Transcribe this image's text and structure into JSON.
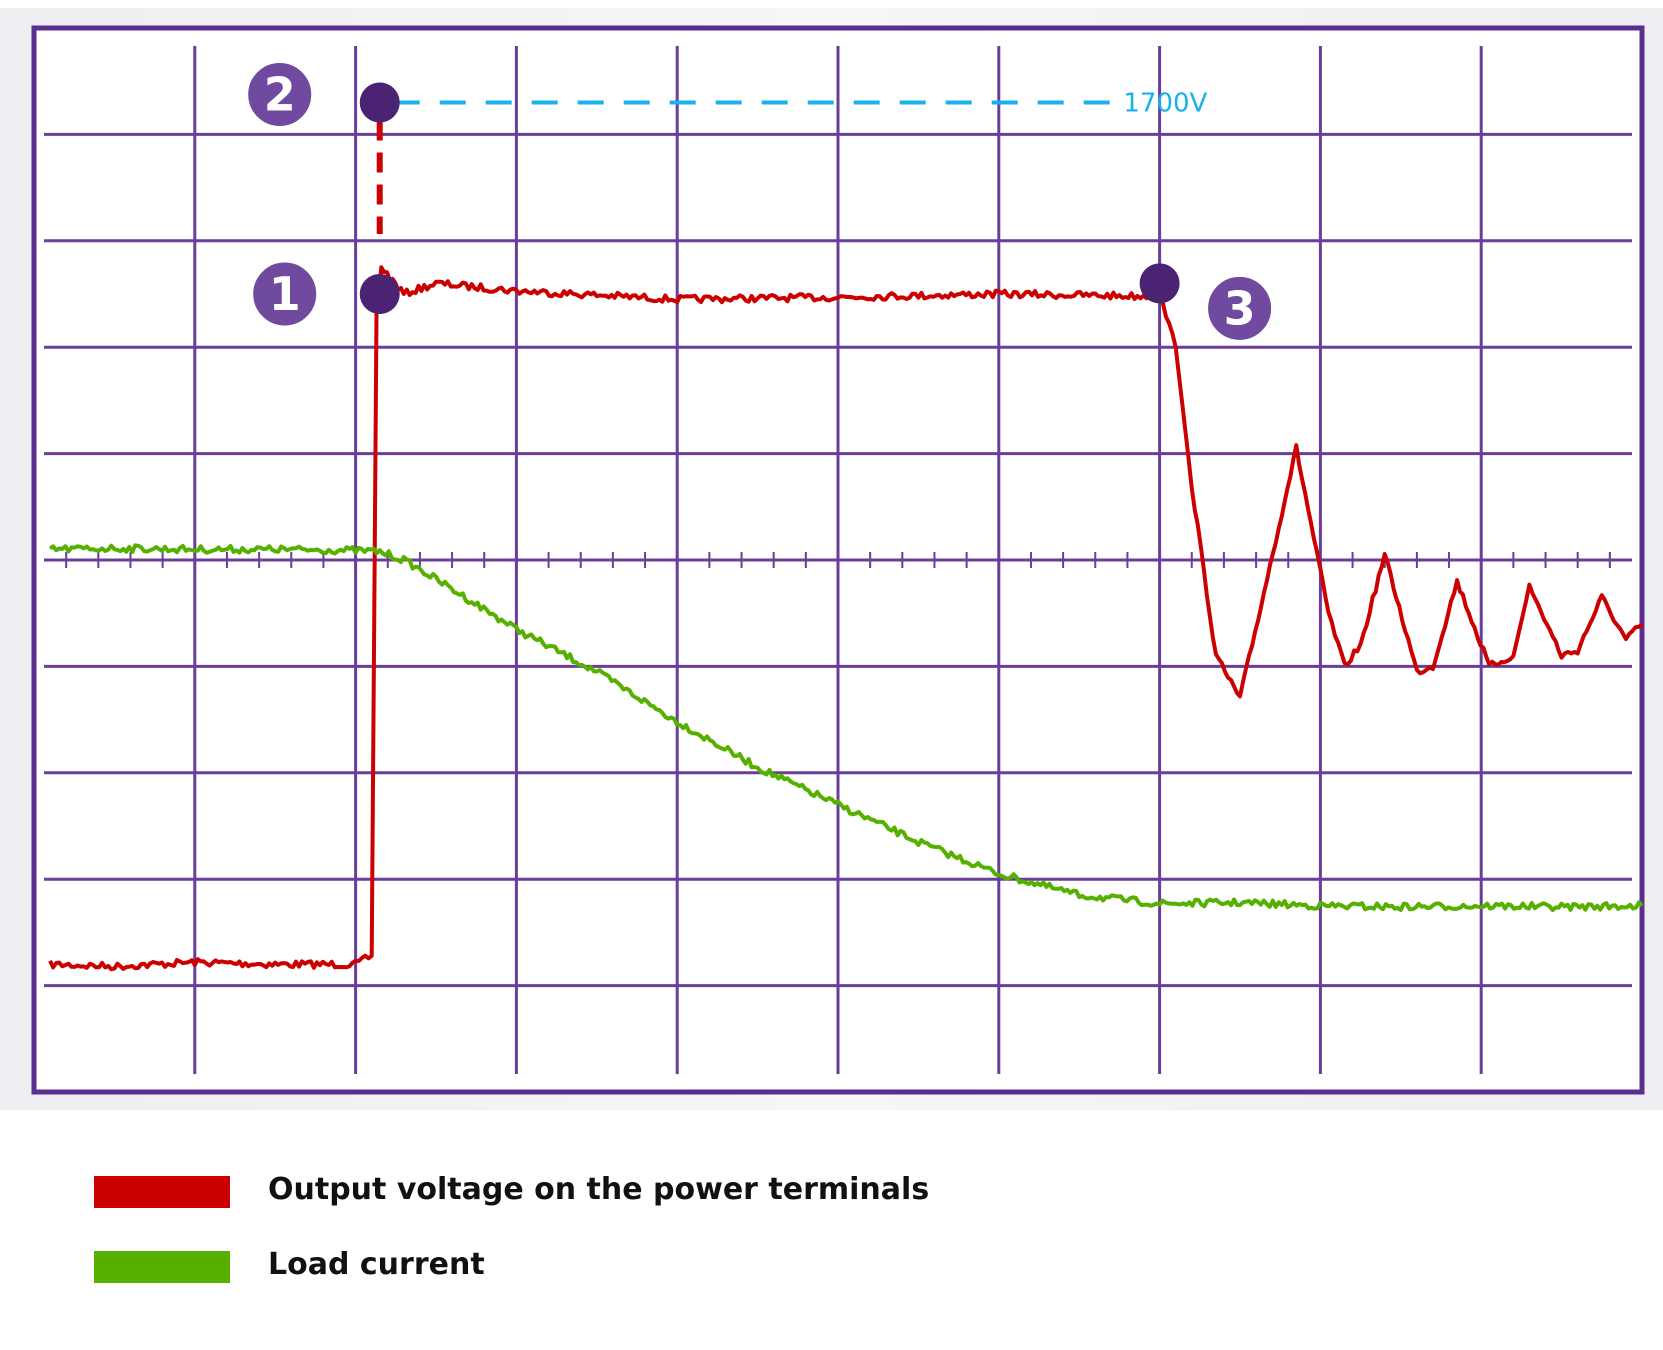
{
  "chart_data": {
    "type": "line",
    "title": "",
    "xlabel": "",
    "ylabel": "",
    "grid": true,
    "xlim": [
      0,
      10
    ],
    "ylim": [
      0,
      10
    ],
    "x_divisions": 10,
    "y_divisions": 10,
    "annotations": [
      {
        "marker": "1",
        "x": 2.15,
        "y": 7.5
      },
      {
        "marker": "2",
        "x": 2.15,
        "y": 9.3
      },
      {
        "marker": "3",
        "x": 7.0,
        "y": 7.6
      }
    ],
    "reference_line": {
      "label": "1700V",
      "y": 9.3,
      "x_start": 2.15,
      "x_end": 6.75
    },
    "series": [
      {
        "name": "Output voltage on the power terminals",
        "color": "#cc0000",
        "points": [
          [
            0.1,
            1.2
          ],
          [
            0.5,
            1.18
          ],
          [
            1.0,
            1.22
          ],
          [
            1.5,
            1.2
          ],
          [
            2.0,
            1.2
          ],
          [
            2.1,
            1.28
          ],
          [
            2.13,
            7.3
          ],
          [
            2.16,
            7.75
          ],
          [
            2.3,
            7.5
          ],
          [
            2.5,
            7.6
          ],
          [
            3.0,
            7.53
          ],
          [
            4.0,
            7.45
          ],
          [
            5.0,
            7.47
          ],
          [
            6.0,
            7.5
          ],
          [
            6.9,
            7.48
          ],
          [
            7.0,
            7.5
          ],
          [
            7.1,
            7.0
          ],
          [
            7.2,
            5.7
          ],
          [
            7.35,
            4.1
          ],
          [
            7.5,
            3.7
          ],
          [
            7.65,
            4.7
          ],
          [
            7.85,
            6.05
          ],
          [
            8.05,
            4.5
          ],
          [
            8.15,
            4.0
          ],
          [
            8.25,
            4.2
          ],
          [
            8.4,
            5.05
          ],
          [
            8.6,
            3.95
          ],
          [
            8.7,
            4.0
          ],
          [
            8.85,
            4.8
          ],
          [
            9.05,
            4.0
          ],
          [
            9.2,
            4.1
          ],
          [
            9.3,
            4.75
          ],
          [
            9.5,
            4.1
          ],
          [
            9.6,
            4.15
          ],
          [
            9.75,
            4.65
          ],
          [
            9.9,
            4.25
          ],
          [
            10.0,
            4.4
          ]
        ]
      },
      {
        "name": "Load current",
        "color": "#55b000",
        "points": [
          [
            0.1,
            5.1
          ],
          [
            0.5,
            5.11
          ],
          [
            1.0,
            5.1
          ],
          [
            1.5,
            5.1
          ],
          [
            2.0,
            5.09
          ],
          [
            2.15,
            5.08
          ],
          [
            2.3,
            5.0
          ],
          [
            2.5,
            4.82
          ],
          [
            3.0,
            4.35
          ],
          [
            3.5,
            3.95
          ],
          [
            4.0,
            3.48
          ],
          [
            4.5,
            3.05
          ],
          [
            5.0,
            2.7
          ],
          [
            5.5,
            2.35
          ],
          [
            6.0,
            2.05
          ],
          [
            6.5,
            1.85
          ],
          [
            7.0,
            1.77
          ],
          [
            7.5,
            1.78
          ],
          [
            8.0,
            1.75
          ],
          [
            8.5,
            1.74
          ],
          [
            9.0,
            1.75
          ],
          [
            9.5,
            1.74
          ],
          [
            10.0,
            1.75
          ]
        ]
      }
    ],
    "legend": {
      "placement": "bottom",
      "items": [
        {
          "label": "Output voltage on the power terminals",
          "color": "#cc0000"
        },
        {
          "label": "Load current",
          "color": "#55b000"
        }
      ]
    }
  },
  "colors": {
    "grid": "#6a3d9a",
    "frame": "#5b2d8e",
    "marker": "#4a2473",
    "badge": "#6f4a9e",
    "reference": "#1ab0ee",
    "vertical_dash": "#cc0000"
  }
}
